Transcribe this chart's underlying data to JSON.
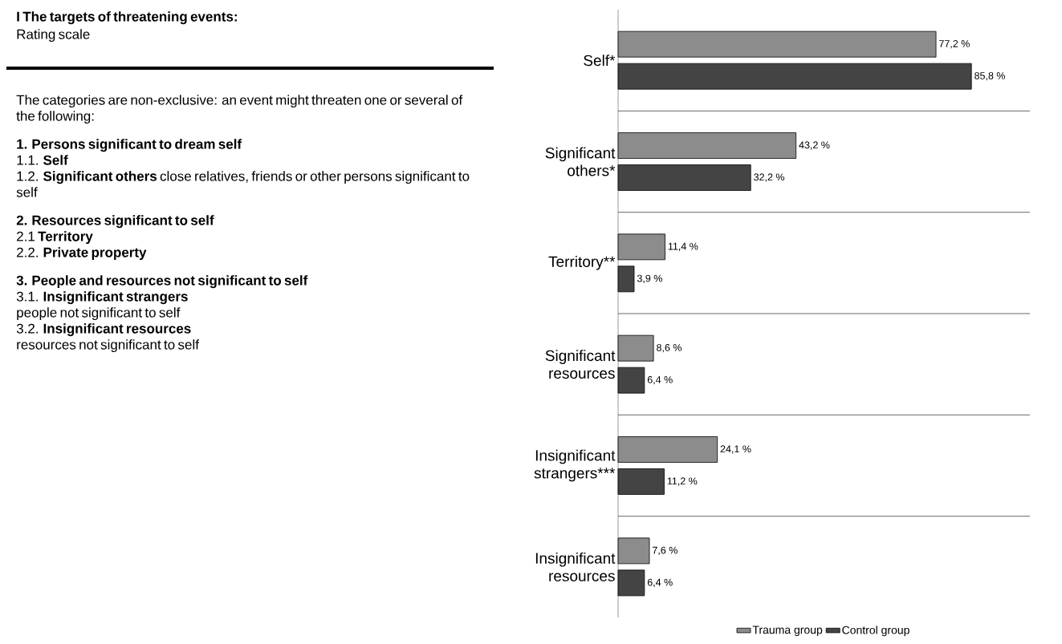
{
  "chart_data": [
    {
      "type": "other",
      "title": "I The targets of threatening events:",
      "subtitle": "Rating scale",
      "annotations": [
        "The categories are non-exclusive: an event might threaten one or several of the following:",
        "**1. Persons significant to dream self**",
        "1.1. **Self**",
        "1.2. **Significant others** close relatives, friends or other persons significant to self",
        "**2. Resources significant to self**",
        "2.1 **Territory**",
        "2.2. **Private property**",
        "**3. People and resources not significant to self**",
        "3.1. **Insignificant strangers**",
        "people not significant to self",
        "3.2. **Insignificant resources**",
        "resources not significant to self"
      ]
    },
    {
      "type": "bar",
      "orientation": "horizontal",
      "categories": [
        "Self*",
        "Significant others*",
        "Territory**",
        "Significant resources",
        "Insignificant strangers***",
        "Insignificant resources"
      ],
      "series": [
        {
          "name": "Trauma group",
          "color": "#8c8c8c",
          "values": [
            77.2,
            43.2,
            11.4,
            8.6,
            24.1,
            7.6
          ],
          "value_labels": [
            "77,2 %",
            "43,2 %",
            "11,4 %",
            "8,6 %",
            "24,1 %",
            "7,6 %"
          ]
        },
        {
          "name": "Control group",
          "color": "#444444",
          "values": [
            85.8,
            32.2,
            3.9,
            6.4,
            11.2,
            6.4
          ],
          "value_labels": [
            "85,8 %",
            "32,2 %",
            "3,9 %",
            "6,4 %",
            "11,2 %",
            "6,4 %"
          ]
        }
      ],
      "xlim": [
        0,
        100
      ],
      "grid": "y",
      "legend": "bottom",
      "tick_labels": "y"
    }
  ]
}
